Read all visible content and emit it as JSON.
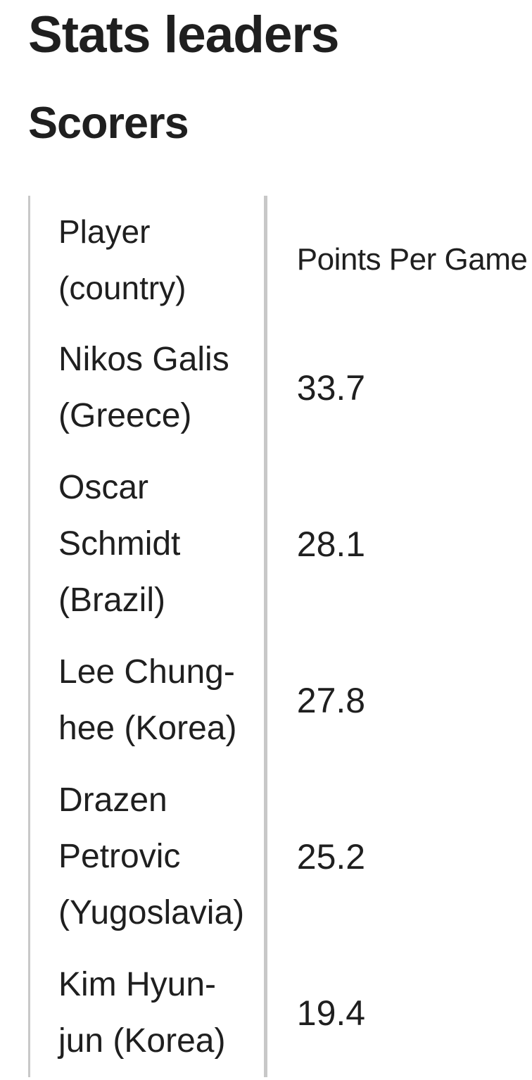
{
  "page": {
    "title": "Stats leaders",
    "section": "Scorers"
  },
  "colors": {
    "text": "#1f1f1f",
    "table_border": "#c8c8c8",
    "background": "#ffffff"
  },
  "table": {
    "columns": [
      {
        "label": "Player (country)",
        "label_lines": [
          "Player",
          "(country)"
        ]
      },
      {
        "label": "Points Per Game",
        "label_lines": [
          "Points Per Game"
        ]
      }
    ],
    "rows": [
      {
        "player": "Nikos Galis (Greece)",
        "player_lines": [
          "Nikos Galis",
          "(Greece)"
        ],
        "points_per_game": "33.7"
      },
      {
        "player": "Oscar Schmidt (Brazil)",
        "player_lines": [
          "Oscar",
          "Schmidt",
          "(Brazil)"
        ],
        "points_per_game": "28.1"
      },
      {
        "player": "Lee Chung-hee (Korea)",
        "player_lines": [
          "Lee Chung-",
          "hee (Korea)"
        ],
        "points_per_game": "27.8"
      },
      {
        "player": "Drazen Petrovic (Yugoslavia)",
        "player_lines": [
          "Drazen",
          "Petrovic",
          "(Yugoslavia)"
        ],
        "points_per_game": "25.2"
      },
      {
        "player": "Kim Hyun-jun (Korea)",
        "player_lines": [
          "Kim Hyun-",
          "jun (Korea)"
        ],
        "points_per_game": "19.4"
      }
    ]
  },
  "chart_data": {
    "type": "table",
    "title": "Stats leaders — Scorers",
    "categories": [
      "Nikos Galis (Greece)",
      "Oscar Schmidt (Brazil)",
      "Lee Chung-hee (Korea)",
      "Drazen Petrovic (Yugoslavia)",
      "Kim Hyun-jun (Korea)"
    ],
    "values": [
      33.7,
      28.1,
      27.8,
      25.2,
      19.4
    ],
    "ylabel": "Points Per Game"
  }
}
